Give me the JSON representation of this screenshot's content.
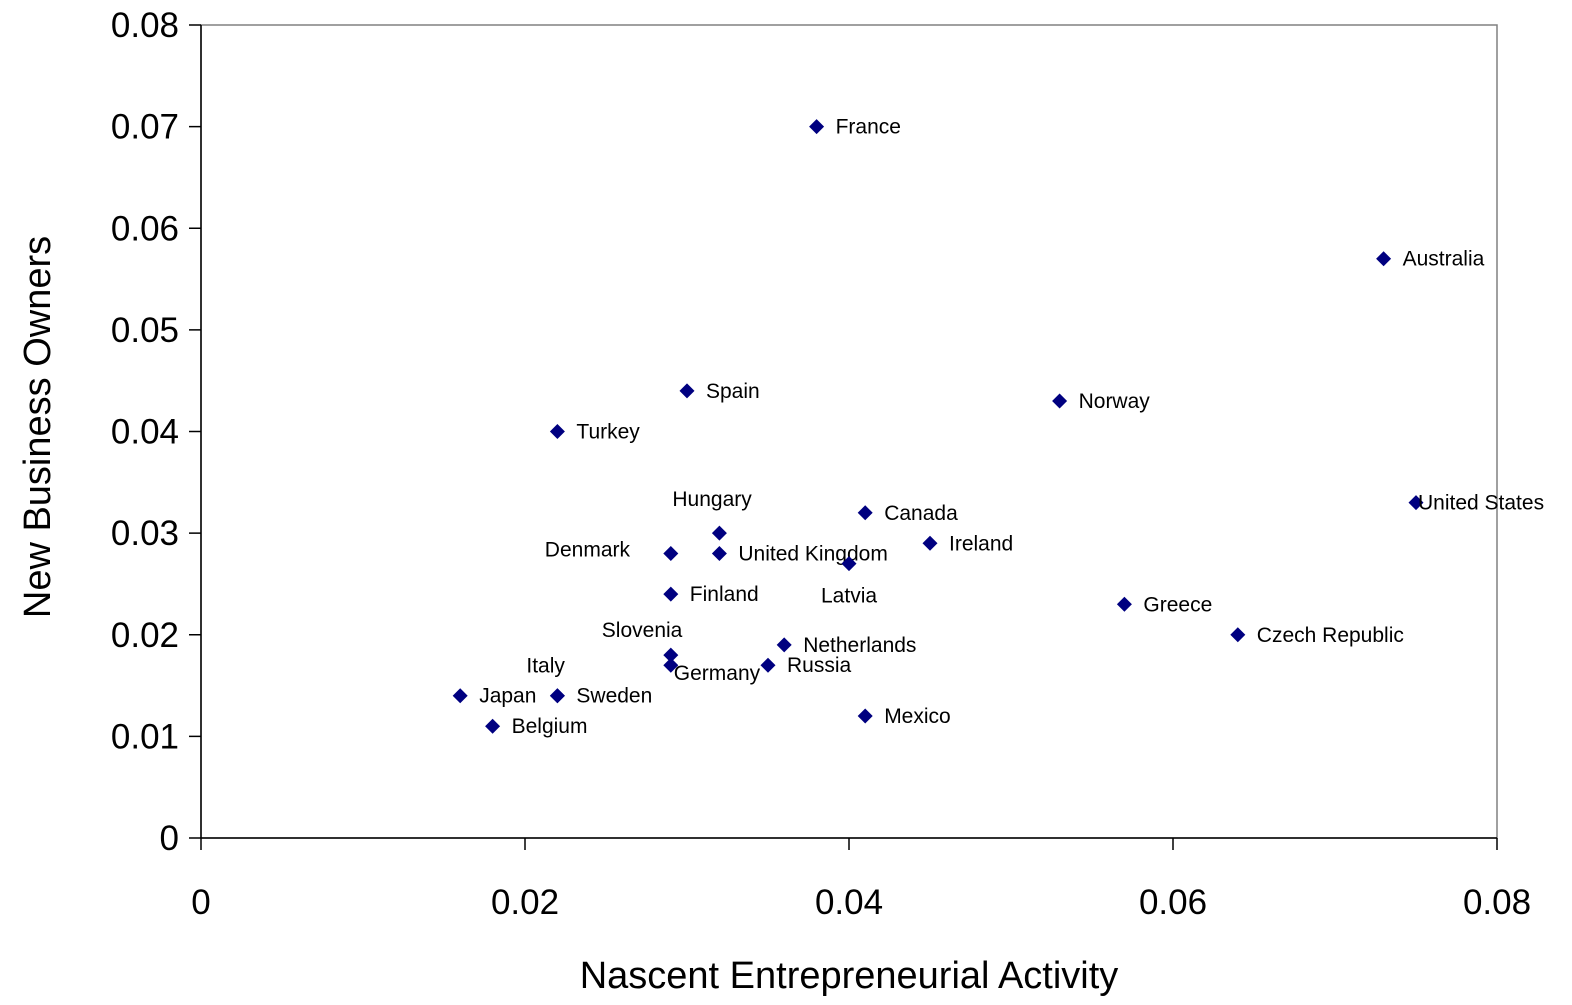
{
  "chart_data": {
    "type": "scatter",
    "title": "",
    "xlabel": "Nascent Entrepreneurial Activity",
    "ylabel": "New Business Owners",
    "xlim": [
      0,
      0.08
    ],
    "ylim": [
      0,
      0.08
    ],
    "xticks": [
      "0",
      "0.02",
      "0.04",
      "0.06",
      "0.08"
    ],
    "yticks": [
      "0",
      "0.01",
      "0.02",
      "0.03",
      "0.04",
      "0.05",
      "0.06",
      "0.07",
      "0.08"
    ],
    "grid": false,
    "legend": "none",
    "marker_color": "#000080",
    "points": [
      {
        "label": "France",
        "x": 0.038,
        "y": 0.07
      },
      {
        "label": "Australia",
        "x": 0.073,
        "y": 0.057
      },
      {
        "label": "Spain",
        "x": 0.03,
        "y": 0.044
      },
      {
        "label": "Norway",
        "x": 0.053,
        "y": 0.043
      },
      {
        "label": "Turkey",
        "x": 0.022,
        "y": 0.04
      },
      {
        "label": "United States",
        "x": 0.075,
        "y": 0.033
      },
      {
        "label": "Canada",
        "x": 0.041,
        "y": 0.032
      },
      {
        "label": "Hungary",
        "x": 0.032,
        "y": 0.03
      },
      {
        "label": "Ireland",
        "x": 0.045,
        "y": 0.029
      },
      {
        "label": "Denmark",
        "x": 0.029,
        "y": 0.028
      },
      {
        "label": "United Kingdom",
        "x": 0.032,
        "y": 0.028
      },
      {
        "label": "Latvia",
        "x": 0.04,
        "y": 0.027
      },
      {
        "label": "Finland",
        "x": 0.029,
        "y": 0.024
      },
      {
        "label": "Greece",
        "x": 0.057,
        "y": 0.023
      },
      {
        "label": "Czech Republic",
        "x": 0.064,
        "y": 0.02
      },
      {
        "label": "Netherlands",
        "x": 0.036,
        "y": 0.019
      },
      {
        "label": "Slovenia",
        "x": 0.029,
        "y": 0.018
      },
      {
        "label": "Germany",
        "x": 0.029,
        "y": 0.017
      },
      {
        "label": "Russia",
        "x": 0.035,
        "y": 0.017
      },
      {
        "label": "Italy",
        "x": 0.022,
        "y": 0.014
      },
      {
        "label": "Japan",
        "x": 0.016,
        "y": 0.014
      },
      {
        "label": "Sweden",
        "x": 0.022,
        "y": 0.014
      },
      {
        "label": "Mexico",
        "x": 0.041,
        "y": 0.012
      },
      {
        "label": "Belgium",
        "x": 0.018,
        "y": 0.011
      }
    ]
  }
}
